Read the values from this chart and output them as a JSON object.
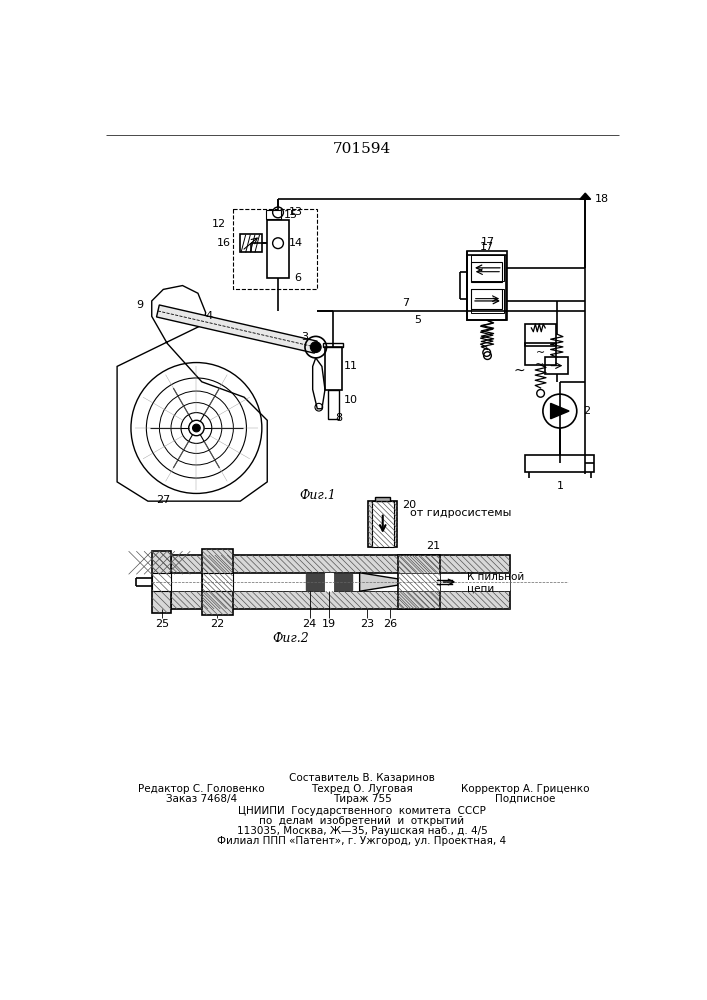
{
  "patent_number": "701594",
  "fig1_caption": "Фиг.1",
  "fig2_caption": "Фиг.2",
  "fig2_arrow_text": "от гидросистемы",
  "fig2_right_label_1": "К пильной",
  "fig2_right_label_2": "цепи",
  "footer_composer": "Составитель В. Казаринов",
  "footer_editor": "Редактор С. Головенко",
  "footer_techred": "Техред О. Луговая",
  "footer_corrector": "Корректор А. Гриценко",
  "footer_order": "Заказ 7468/4",
  "footer_tirage": "Тираж 755",
  "footer_signed": "Подписное",
  "footer_cnipi1": "ЦНИИПИ  Государственного  комитета  СССР",
  "footer_cnipi2": "по  делам  изобретений  и  открытий",
  "footer_address": "113035, Москва, Ж—35, Раушская наб., д. 4/5",
  "footer_filial": "Филиал ППП «Патент», г. Ужгород, ул. Проектная, 4"
}
